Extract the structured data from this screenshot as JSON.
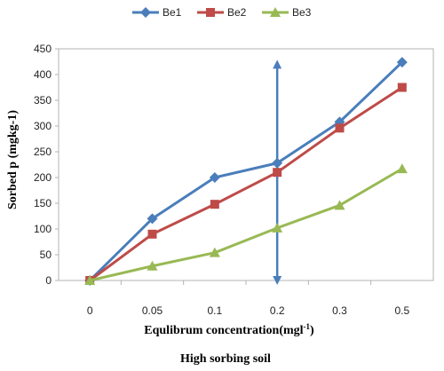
{
  "chart_data": {
    "type": "line",
    "categories": [
      "0",
      "0.05",
      "0.1",
      "0.2",
      "0.3",
      "0.5"
    ],
    "series": [
      {
        "name": "Be1",
        "values": [
          0,
          120,
          200,
          228,
          308,
          424
        ],
        "color": "#4a7ebb",
        "marker": "diamond"
      },
      {
        "name": "Be2",
        "values": [
          0,
          90,
          148,
          210,
          296,
          375
        ],
        "color": "#be4b48",
        "marker": "square"
      },
      {
        "name": "Be3",
        "values": [
          0,
          28,
          54,
          102,
          146,
          217
        ],
        "color": "#98b954",
        "marker": "triangle"
      }
    ],
    "xlabel": "Equlibrum concentration(mgl",
    "xlabel_sup": "-1",
    "xlabel_close": ")",
    "caption": "High sorbing soil",
    "ylabel": "Sorbed p (mgkg-1)",
    "ylim": [
      0,
      450
    ],
    "yticks": [
      0,
      50,
      100,
      150,
      200,
      250,
      300,
      350,
      400,
      450
    ],
    "legend_position": "top",
    "annotation": {
      "type": "double-arrow",
      "category": "0.2",
      "from": 0,
      "to": 420,
      "color": "#4a7ebb"
    }
  }
}
